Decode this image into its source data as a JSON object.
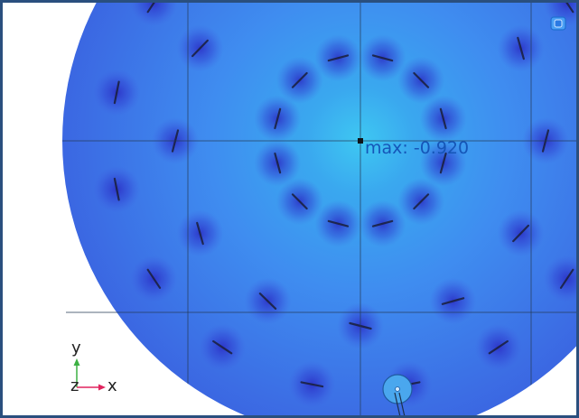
{
  "plot": {
    "max_label": "max: -0.920",
    "colors": {
      "background": "#ffffff",
      "frame": "#2a4f7e",
      "field_high": "#3ec8f2",
      "field_mid": "#3f8df0",
      "field_low": "#2f3fd0",
      "marker": "#101418",
      "grid": "#243a55"
    }
  },
  "toolbar": {
    "icon_name": "zoom-extents-icon"
  },
  "triad": {
    "y_label": "y",
    "z_label": "z",
    "x_label": "x",
    "y_color": "#3cb043",
    "x_color": "#e0245e"
  }
}
